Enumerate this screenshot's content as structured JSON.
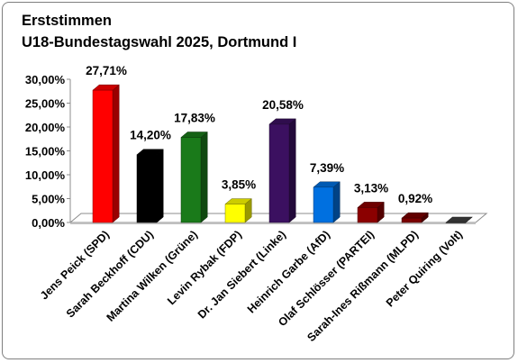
{
  "chart_data": {
    "type": "bar",
    "title": "Erststimmen",
    "subtitle": "U18-Bundestagswahl 2025, Dortmund I",
    "xlabel": "",
    "ylabel": "",
    "ylim": [
      0,
      30
    ],
    "yticks": [
      "0,00%",
      "5,00%",
      "10,00%",
      "15,00%",
      "20,00%",
      "25,00%",
      "30,00%"
    ],
    "ytick_values": [
      0,
      5,
      10,
      15,
      20,
      25,
      30
    ],
    "grid": false,
    "legend": "none",
    "categories": [
      "Jens Peick (SPD)",
      "Sarah Beckhoff (CDU)",
      "Martina Wilken (Grüne)",
      "Levin Rybak (FDP)",
      "Dr. Jan Siebert (Linke)",
      "Heinrich Garbe (AfD)",
      "Olaf Schlösser (PARTEI)",
      "Sarah-Ines Rißmann (MLPD)",
      "Peter Quiring (Volt)"
    ],
    "values": [
      27.71,
      14.2,
      17.83,
      3.85,
      20.58,
      7.39,
      3.13,
      0.92,
      0
    ],
    "data_labels": [
      "27,71%",
      "14,20%",
      "17,83%",
      "3,85%",
      "20,58%",
      "7,39%",
      "3,13%",
      "0,92%",
      ""
    ],
    "colors": [
      "#ff0000",
      "#000000",
      "#1a7a1a",
      "#ffff00",
      "#3b1060",
      "#0070e0",
      "#8b0000",
      "#7a0000",
      "#404040"
    ]
  }
}
